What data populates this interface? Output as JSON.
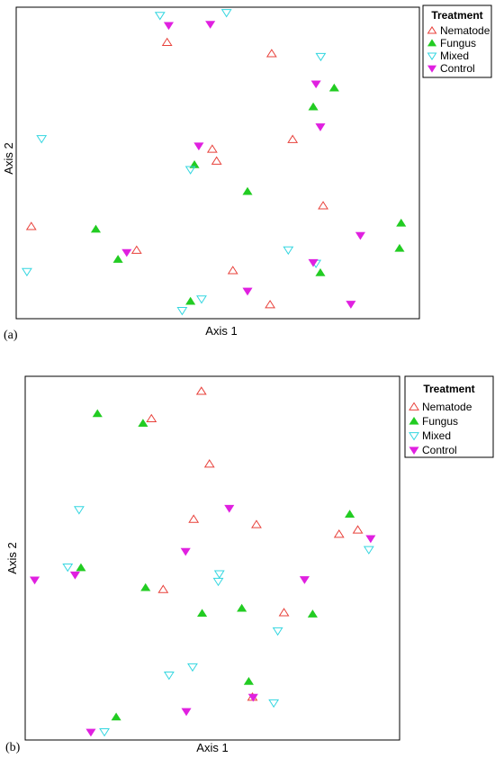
{
  "legend_title": "Treatment",
  "series_styles": [
    {
      "name": "Nematode",
      "shape": "triangle-up-open",
      "color": "#e8403a"
    },
    {
      "name": "Fungus",
      "shape": "triangle-up-filled",
      "color": "#22cc22"
    },
    {
      "name": "Mixed",
      "shape": "triangle-down-open",
      "color": "#33d6e0"
    },
    {
      "name": "Control",
      "shape": "triangle-down-filled",
      "color": "#e020e0"
    }
  ],
  "chart_data": [
    {
      "type": "scatter",
      "panel_label": "(a)",
      "xlabel": "Axis 1",
      "ylabel": "Axis 2",
      "xlim": [
        0,
        100
      ],
      "ylim": [
        0,
        100
      ],
      "legend_placement": "top-right",
      "grid": false,
      "series": [
        {
          "name": "Nematode",
          "points": [
            [
              37.2,
              89.6
            ],
            [
              63.6,
              85.9
            ],
            [
              48.6,
              54.5
            ],
            [
              49.7,
              50.6
            ],
            [
              68.9,
              57.7
            ],
            [
              76.6,
              35.9
            ],
            [
              2.9,
              29.1
            ],
            [
              29.5,
              21.3
            ],
            [
              53.8,
              14.6
            ],
            [
              63.2,
              3.4
            ]
          ]
        },
        {
          "name": "Fungus",
          "points": [
            [
              79.4,
              74.6
            ],
            [
              74.1,
              68.4
            ],
            [
              44.1,
              49.4
            ],
            [
              57.5,
              40.6
            ],
            [
              19.2,
              28.2
            ],
            [
              96.3,
              30.2
            ],
            [
              95.9,
              21.9
            ],
            [
              24.8,
              18.3
            ],
            [
              75.9,
              13.9
            ],
            [
              43.1,
              4.5
            ]
          ]
        },
        {
          "name": "Mixed",
          "points": [
            [
              35.4,
              98.5
            ],
            [
              52.2,
              99.4
            ],
            [
              76.0,
              85.0
            ],
            [
              5.5,
              58.0
            ],
            [
              43.1,
              47.8
            ],
            [
              67.8,
              21.4
            ],
            [
              74.8,
              17.0
            ],
            [
              1.8,
              14.3
            ],
            [
              45.9,
              5.3
            ],
            [
              41.0,
              1.5
            ]
          ]
        },
        {
          "name": "Control",
          "points": [
            [
              37.6,
              95.2
            ],
            [
              48.1,
              95.6
            ],
            [
              74.8,
              76.0
            ],
            [
              75.9,
              61.9
            ],
            [
              45.2,
              55.6
            ],
            [
              27.0,
              20.6
            ],
            [
              86.0,
              26.2
            ],
            [
              74.1,
              17.3
            ],
            [
              57.5,
              7.9
            ],
            [
              83.6,
              3.6
            ]
          ]
        }
      ]
    },
    {
      "type": "scatter",
      "panel_label": "(b)",
      "xlabel": "Axis 1",
      "ylabel": "Axis 2",
      "xlim": [
        0,
        100
      ],
      "ylim": [
        0,
        100
      ],
      "legend_placement": "top-right",
      "grid": false,
      "series": [
        {
          "name": "Nematode",
          "points": [
            [
              47.0,
              96.8
            ],
            [
              33.4,
              89.1
            ],
            [
              49.2,
              76.4
            ],
            [
              44.9,
              60.9
            ],
            [
              62.0,
              59.4
            ],
            [
              84.5,
              56.7
            ],
            [
              89.6,
              57.9
            ],
            [
              36.6,
              41.2
            ],
            [
              69.5,
              34.7
            ],
            [
              60.9,
              11.0
            ]
          ]
        },
        {
          "name": "Fungus",
          "points": [
            [
              18.7,
              90.5
            ],
            [
              31.1,
              87.8
            ],
            [
              87.4,
              62.3
            ],
            [
              14.2,
              47.3
            ],
            [
              31.8,
              41.7
            ],
            [
              47.2,
              34.5
            ],
            [
              58.0,
              35.9
            ],
            [
              77.3,
              34.3
            ],
            [
              59.9,
              15.4
            ],
            [
              23.8,
              5.4
            ]
          ]
        },
        {
          "name": "Mixed",
          "points": [
            [
              13.7,
              63.6
            ],
            [
              10.6,
              47.5
            ],
            [
              51.9,
              45.6
            ],
            [
              51.6,
              43.5
            ],
            [
              67.8,
              29.6
            ],
            [
              38.2,
              17.2
            ],
            [
              44.6,
              19.5
            ],
            [
              66.7,
              9.4
            ],
            [
              92.6,
              52.4
            ],
            [
              20.6,
              1.3
            ]
          ]
        },
        {
          "name": "Control",
          "points": [
            [
              54.6,
              64.0
            ],
            [
              42.7,
              51.9
            ],
            [
              1.6,
              43.9
            ],
            [
              12.6,
              45.3
            ],
            [
              75.1,
              44.0
            ],
            [
              93.1,
              55.5
            ],
            [
              61.1,
              11.0
            ],
            [
              42.9,
              7.0
            ],
            [
              16.9,
              1.2
            ]
          ]
        }
      ]
    }
  ]
}
